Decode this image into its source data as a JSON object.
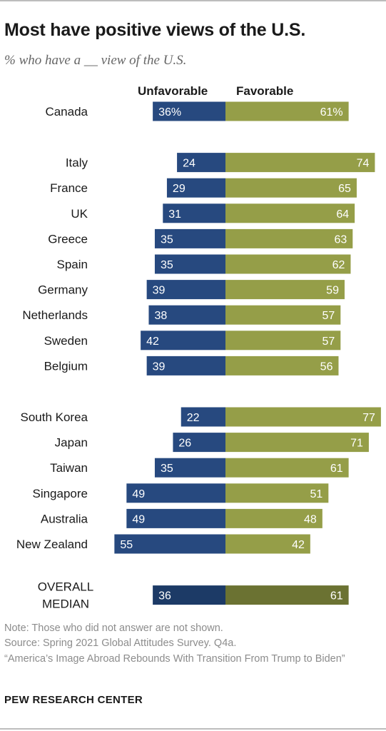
{
  "title": "Most have positive views of the U.S.",
  "subtitle": "% who have a __ view of the U.S.",
  "columns": {
    "unfavorable": "Unfavorable",
    "favorable": "Favorable"
  },
  "notes": {
    "note": "Note: Those who did not answer are not shown.",
    "source": "Source: Spring 2021 Global Attitudes Survey. Q4a.",
    "report": "“America’s Image Abroad Rebounds With Transition From Trump to Biden”"
  },
  "org": "PEW RESEARCH CENTER",
  "colors": {
    "unfavorable": "#27497f",
    "favorable": "#959e48",
    "median_unfavorable": "#1c3a66",
    "median_favorable": "#6b7232"
  },
  "chart_data": {
    "type": "bar",
    "orientation": "horizontal-diverging",
    "series": [
      {
        "name": "Unfavorable",
        "values": [
          36,
          24,
          29,
          31,
          35,
          35,
          39,
          38,
          42,
          39,
          22,
          26,
          35,
          49,
          49,
          55,
          36
        ]
      },
      {
        "name": "Favorable",
        "values": [
          61,
          74,
          65,
          64,
          63,
          62,
          59,
          57,
          57,
          56,
          77,
          71,
          61,
          51,
          48,
          42,
          61
        ]
      }
    ],
    "categories": [
      "Canada",
      "Italy",
      "France",
      "UK",
      "Greece",
      "Spain",
      "Germany",
      "Netherlands",
      "Sweden",
      "Belgium",
      "South Korea",
      "Japan",
      "Taiwan",
      "Singapore",
      "Australia",
      "New Zealand",
      "OVERALL MEDIAN"
    ],
    "value_labels_unfavorable": [
      "36%",
      "24",
      "29",
      "31",
      "35",
      "35",
      "39",
      "38",
      "42",
      "39",
      "22",
      "26",
      "35",
      "49",
      "49",
      "55",
      "36"
    ],
    "value_labels_favorable": [
      "61%",
      "74",
      "65",
      "64",
      "63",
      "62",
      "59",
      "57",
      "57",
      "56",
      "77",
      "71",
      "61",
      "51",
      "48",
      "42",
      "61"
    ],
    "groups": [
      [
        "Canada"
      ],
      [
        "Italy",
        "France",
        "UK",
        "Greece",
        "Spain",
        "Germany",
        "Netherlands",
        "Sweden",
        "Belgium"
      ],
      [
        "South Korea",
        "Japan",
        "Taiwan",
        "Singapore",
        "Australia",
        "New Zealand"
      ],
      [
        "OVERALL MEDIAN"
      ]
    ],
    "median_category": "OVERALL MEDIAN",
    "grid": false
  }
}
